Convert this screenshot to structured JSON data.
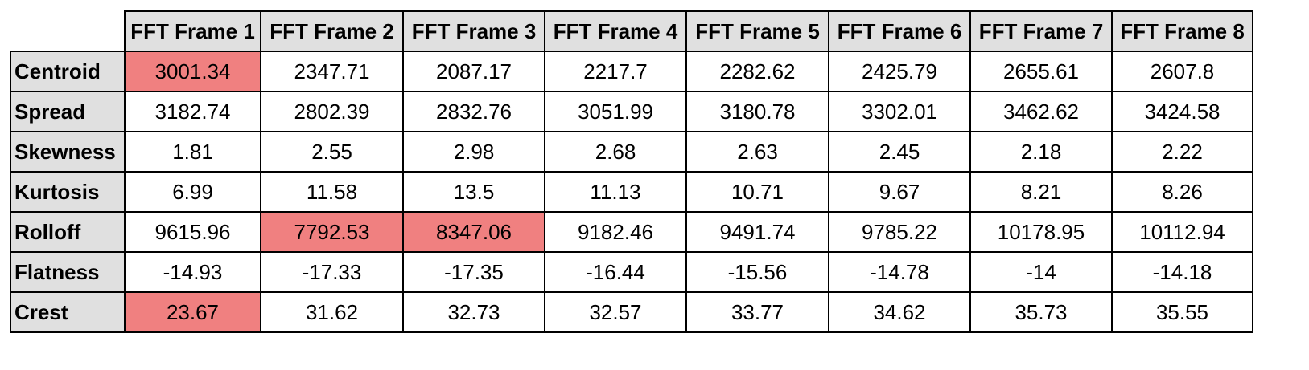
{
  "table": {
    "columns": [
      "FFT Frame 1",
      "FFT Frame 2",
      "FFT Frame 3",
      "FFT Frame 4",
      "FFT Frame 5",
      "FFT Frame 6",
      "FFT Frame 7",
      "FFT Frame 8"
    ],
    "rows": [
      {
        "label": "Centroid",
        "values": [
          "3001.34",
          "2347.71",
          "2087.17",
          "2217.7",
          "2282.62",
          "2425.79",
          "2655.61",
          "2607.8"
        ],
        "highlight": [
          0
        ]
      },
      {
        "label": "Spread",
        "values": [
          "3182.74",
          "2802.39",
          "2832.76",
          "3051.99",
          "3180.78",
          "3302.01",
          "3462.62",
          "3424.58"
        ],
        "highlight": []
      },
      {
        "label": "Skewness",
        "values": [
          "1.81",
          "2.55",
          "2.98",
          "2.68",
          "2.63",
          "2.45",
          "2.18",
          "2.22"
        ],
        "highlight": []
      },
      {
        "label": "Kurtosis",
        "values": [
          "6.99",
          "11.58",
          "13.5",
          "11.13",
          "10.71",
          "9.67",
          "8.21",
          "8.26"
        ],
        "highlight": []
      },
      {
        "label": "Rolloff",
        "values": [
          "9615.96",
          "7792.53",
          "8347.06",
          "9182.46",
          "9491.74",
          "9785.22",
          "10178.95",
          "10112.94"
        ],
        "highlight": [
          1,
          2
        ]
      },
      {
        "label": "Flatness",
        "values": [
          "-14.93",
          "-17.33",
          "-17.35",
          "-16.44",
          "-15.56",
          "-14.78",
          "-14",
          "-14.18"
        ],
        "highlight": []
      },
      {
        "label": "Crest",
        "values": [
          "23.67",
          "31.62",
          "32.73",
          "32.57",
          "33.77",
          "34.62",
          "35.73",
          "35.55"
        ],
        "highlight": [
          0
        ]
      }
    ],
    "highlight_color": "#f08080",
    "header_color": "#e0e0e0"
  }
}
